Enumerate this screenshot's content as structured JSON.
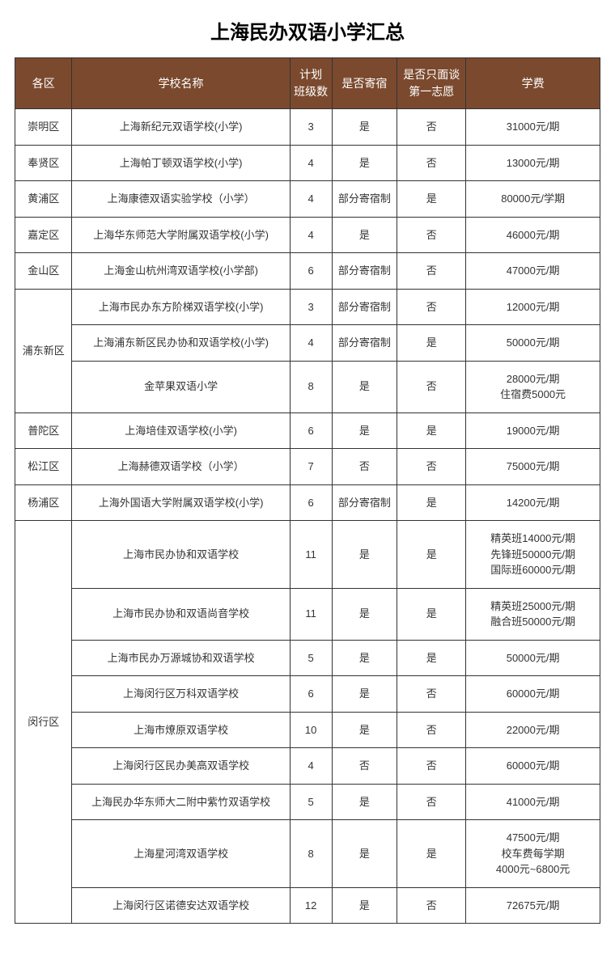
{
  "title": "上海民办双语小学汇总",
  "header": {
    "district": "各区",
    "school": "学校名称",
    "classes": "计划\n班级数",
    "boarding": "是否寄宿",
    "first_choice": "是否只面谈\n第一志愿",
    "fee": "学费"
  },
  "colors": {
    "header_bg": "#7b4a2e",
    "header_text": "#ffffff",
    "border": "#333333",
    "cell_text": "#333333"
  },
  "districts": [
    {
      "name": "崇明区",
      "schools": [
        {
          "school": "上海新纪元双语学校(小学)",
          "classes": "3",
          "boarding": "是",
          "first": "否",
          "fee": "31000元/期"
        }
      ]
    },
    {
      "name": "奉贤区",
      "schools": [
        {
          "school": "上海帕丁顿双语学校(小学)",
          "classes": "4",
          "boarding": "是",
          "first": "否",
          "fee": "13000元/期"
        }
      ]
    },
    {
      "name": "黄浦区",
      "schools": [
        {
          "school": "上海康德双语实验学校（小学）",
          "classes": "4",
          "boarding": "部分寄宿制",
          "first": "是",
          "fee": "80000元/学期"
        }
      ]
    },
    {
      "name": "嘉定区",
      "schools": [
        {
          "school": "上海华东师范大学附属双语学校(小学)",
          "classes": "4",
          "boarding": "是",
          "first": "否",
          "fee": "46000元/期"
        }
      ]
    },
    {
      "name": "金山区",
      "schools": [
        {
          "school": "上海金山杭州湾双语学校(小学部)",
          "classes": "6",
          "boarding": "部分寄宿制",
          "first": "否",
          "fee": "47000元/期"
        }
      ]
    },
    {
      "name": "浦东新区",
      "schools": [
        {
          "school": "上海市民办东方阶梯双语学校(小学)",
          "classes": "3",
          "boarding": "部分寄宿制",
          "first": "否",
          "fee": "12000元/期"
        },
        {
          "school": "上海浦东新区民办协和双语学校(小学)",
          "classes": "4",
          "boarding": "部分寄宿制",
          "first": "是",
          "fee": "50000元/期"
        },
        {
          "school": "金苹果双语小学",
          "classes": "8",
          "boarding": "是",
          "first": "否",
          "fee": "28000元/期\n住宿费5000元"
        }
      ]
    },
    {
      "name": "普陀区",
      "schools": [
        {
          "school": "上海培佳双语学校(小学)",
          "classes": "6",
          "boarding": "是",
          "first": "是",
          "fee": "19000元/期"
        }
      ]
    },
    {
      "name": "松江区",
      "schools": [
        {
          "school": "上海赫德双语学校（小学）",
          "classes": "7",
          "boarding": "否",
          "first": "否",
          "fee": "75000元/期"
        }
      ]
    },
    {
      "name": "杨浦区",
      "schools": [
        {
          "school": "上海外国语大学附属双语学校(小学)",
          "classes": "6",
          "boarding": "部分寄宿制",
          "first": "是",
          "fee": "14200元/期"
        }
      ]
    },
    {
      "name": "闵行区",
      "schools": [
        {
          "school": "上海市民办协和双语学校",
          "classes": "11",
          "boarding": "是",
          "first": "是",
          "fee": "精英班14000元/期\n先锋班50000元/期\n国际班60000元/期"
        },
        {
          "school": "上海市民办协和双语尚音学校",
          "classes": "11",
          "boarding": "是",
          "first": "是",
          "fee": "精英班25000元/期\n融合班50000元/期"
        },
        {
          "school": "上海市民办万源城协和双语学校",
          "classes": "5",
          "boarding": "是",
          "first": "是",
          "fee": "50000元/期"
        },
        {
          "school": "上海闵行区万科双语学校",
          "classes": "6",
          "boarding": "是",
          "first": "否",
          "fee": "60000元/期"
        },
        {
          "school": "上海市燎原双语学校",
          "classes": "10",
          "boarding": "是",
          "first": "否",
          "fee": "22000元/期"
        },
        {
          "school": "上海闵行区民办美高双语学校",
          "classes": "4",
          "boarding": "否",
          "first": "否",
          "fee": "60000元/期"
        },
        {
          "school": "上海民办华东师大二附中紫竹双语学校",
          "classes": "5",
          "boarding": "是",
          "first": "否",
          "fee": "41000元/期"
        },
        {
          "school": "上海星河湾双语学校",
          "classes": "8",
          "boarding": "是",
          "first": "是",
          "fee": "47500元/期\n校车费每学期\n4000元~6800元"
        },
        {
          "school": "上海闵行区诺德安达双语学校",
          "classes": "12",
          "boarding": "是",
          "first": "否",
          "fee": "72675元/期"
        }
      ]
    }
  ]
}
